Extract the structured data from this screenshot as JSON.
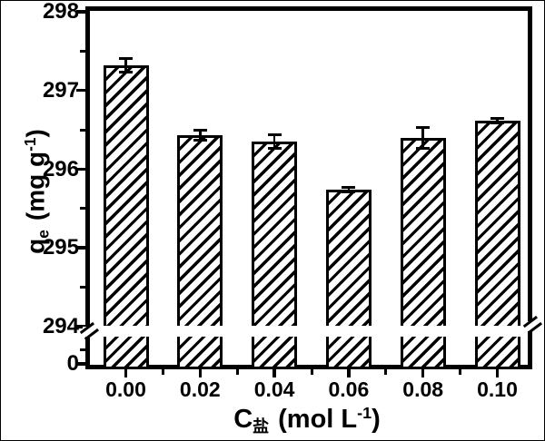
{
  "figure": {
    "background": "#ffffff",
    "ink_color": "#000000",
    "bar_fill": "#ffffff",
    "bar_hatch": "diagonal-forward-slash",
    "title": ""
  },
  "chart_data": {
    "type": "bar",
    "title": "",
    "categories": [
      "0.00",
      "0.02",
      "0.04",
      "0.06",
      "0.08",
      "0.10"
    ],
    "values": [
      297.32,
      296.43,
      296.35,
      295.74,
      296.4,
      296.62
    ],
    "errors": [
      0.09,
      0.06,
      0.09,
      0.03,
      0.13,
      0.03
    ],
    "xlabel": {
      "symbol": "C",
      "subscript": "盐",
      "unit_prefix": "(mol L",
      "unit_superscript": "-1",
      "unit_suffix": ")"
    },
    "ylabel": {
      "symbol": "q",
      "subscript": "e",
      "unit_prefix": "(mg g",
      "unit_superscript": "-1",
      "unit_suffix": ")"
    },
    "y_axis": {
      "upper_major_ticks": [
        298,
        297,
        296,
        295,
        294
      ],
      "upper_minor_ticks": [
        297.5,
        296.5,
        295.5,
        294.5
      ],
      "zero_label": "0",
      "axis_break": true,
      "upper_range": [
        294,
        298
      ]
    },
    "x_axis": {
      "major_tick_labels": [
        "0.00",
        "0.02",
        "0.04",
        "0.06",
        "0.08",
        "0.10"
      ],
      "minor_ticks_between_majors": true
    },
    "legend": null,
    "grid": false
  }
}
